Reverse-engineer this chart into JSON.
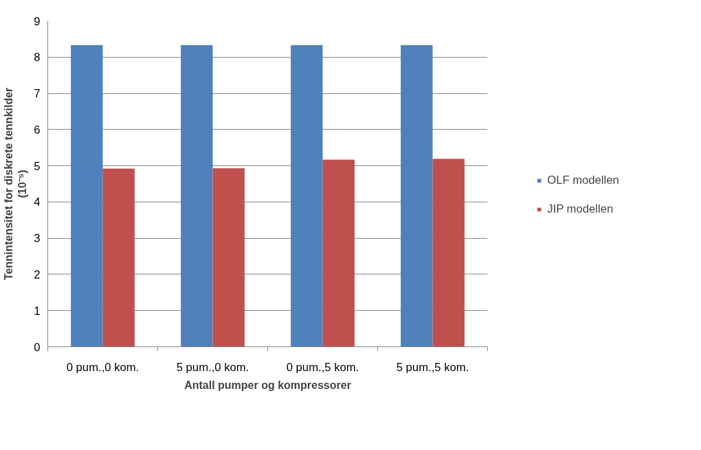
{
  "chart_data": {
    "type": "bar",
    "xlabel": "Antall pumper og kompressorer",
    "ylabel": "Tennintensitet for diskrete tennkilder\n(10⁻⁵)",
    "categories": [
      "0 pum.,0 kom.",
      "5 pum.,0 kom.",
      "0 pum.,5 kom.",
      "5 pum.,5 kom."
    ],
    "series": [
      {
        "name": "OLF modellen",
        "color": "#4f81bd",
        "values": [
          8.33,
          8.33,
          8.33,
          8.33
        ]
      },
      {
        "name": "JIP modellen",
        "color": "#c0504d",
        "values": [
          4.92,
          4.93,
          5.17,
          5.19
        ]
      }
    ],
    "ylim": [
      0,
      9
    ],
    "yticks": [
      0,
      1,
      2,
      3,
      4,
      5,
      6,
      7,
      8,
      9
    ],
    "grid": "y",
    "legend": "right"
  }
}
